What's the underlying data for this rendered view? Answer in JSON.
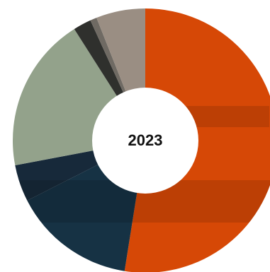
{
  "chart_data": {
    "type": "pie",
    "center_label": "2023",
    "donut": true,
    "start": "12 o'clock",
    "direction": "clockwise",
    "slices": [
      {
        "value": 52.5,
        "color": "#d64806"
      },
      {
        "value": 15.0,
        "color": "#163244"
      },
      {
        "value": 4.5,
        "color": "#17293a"
      },
      {
        "value": 19.0,
        "color": "#93a28b"
      },
      {
        "value": 2.2,
        "color": "#2f302d"
      },
      {
        "value": 0.8,
        "color": "#6f6a63"
      },
      {
        "value": 6.0,
        "color": "#9a8e83"
      }
    ]
  }
}
